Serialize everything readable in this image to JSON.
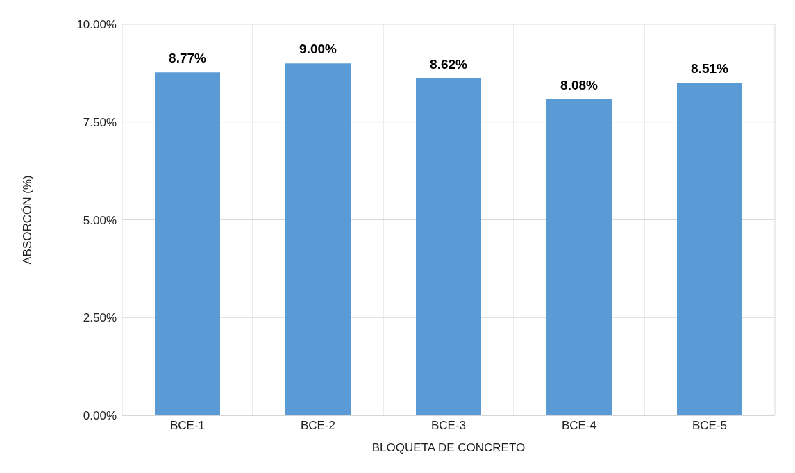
{
  "chart_data": {
    "type": "bar",
    "xlabel": "BLOQUETA DE CONCRETO",
    "ylabel": "ABSORCÓN (%)",
    "categories": [
      "BCE-1",
      "BCE-2",
      "BCE-3",
      "BCE-4",
      "BCE-5"
    ],
    "values": [
      8.77,
      9.0,
      8.62,
      8.08,
      8.51
    ],
    "value_labels": [
      "8.77%",
      "9.00%",
      "8.62%",
      "8.08%",
      "8.51%"
    ],
    "color": "#5b9bd5",
    "ylim": [
      0,
      10
    ],
    "yticks": [
      {
        "value": 0,
        "label": "0.00%"
      },
      {
        "value": 2.5,
        "label": "2.50%"
      },
      {
        "value": 5,
        "label": "5.00%"
      },
      {
        "value": 7.5,
        "label": "7.50%"
      },
      {
        "value": 10,
        "label": "10.00%"
      }
    ],
    "grid": true,
    "legend": false
  }
}
